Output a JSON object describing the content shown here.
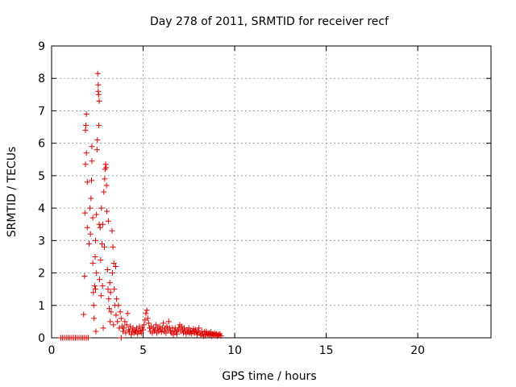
{
  "chart_data": {
    "type": "scatter",
    "title": "Day 278 of 2011, SRMTID for receiver recf",
    "xlabel": "GPS time / hours",
    "ylabel": "SRMTID / TECUs",
    "xlim": [
      0,
      24
    ],
    "ylim": [
      0,
      9
    ],
    "xticks": [
      0,
      5,
      10,
      15,
      20
    ],
    "yticks": [
      0,
      1,
      2,
      3,
      4,
      5,
      6,
      7,
      8,
      9
    ],
    "grid": true,
    "marker": "plus",
    "colors": {
      "series": "#e00000",
      "grid": "#a0a0a0",
      "axis": "#000000"
    },
    "series": [
      {
        "name": "SRMTID",
        "points": [
          [
            0.5,
            0
          ],
          [
            0.6,
            0
          ],
          [
            0.7,
            0
          ],
          [
            0.8,
            0
          ],
          [
            0.9,
            0
          ],
          [
            1.0,
            0
          ],
          [
            1.1,
            0
          ],
          [
            1.2,
            0
          ],
          [
            1.3,
            0
          ],
          [
            1.4,
            0
          ],
          [
            1.5,
            0
          ],
          [
            1.6,
            0
          ],
          [
            1.7,
            0
          ],
          [
            1.8,
            0
          ],
          [
            1.9,
            0
          ],
          [
            2.0,
            0
          ],
          [
            3.8,
            0
          ],
          [
            1.75,
            0.72
          ],
          [
            1.8,
            1.9
          ],
          [
            1.82,
            3.85
          ],
          [
            1.85,
            5.35
          ],
          [
            1.85,
            6.4
          ],
          [
            1.87,
            6.55
          ],
          [
            1.9,
            6.9
          ],
          [
            1.9,
            5.7
          ],
          [
            1.95,
            4.8
          ],
          [
            1.95,
            3.4
          ],
          [
            2.05,
            2.9
          ],
          [
            2.1,
            4.0
          ],
          [
            2.12,
            3.2
          ],
          [
            2.15,
            4.3
          ],
          [
            2.18,
            4.85
          ],
          [
            2.2,
            5.45
          ],
          [
            2.2,
            5.9
          ],
          [
            2.25,
            3.7
          ],
          [
            2.25,
            2.3
          ],
          [
            2.28,
            1.4
          ],
          [
            2.3,
            1.0
          ],
          [
            2.32,
            0.6
          ],
          [
            2.35,
            1.6
          ],
          [
            2.38,
            2.5
          ],
          [
            2.4,
            3.0
          ],
          [
            2.4,
            1.5
          ],
          [
            2.42,
            0.2
          ],
          [
            2.45,
            3.8
          ],
          [
            2.45,
            2.0
          ],
          [
            2.48,
            5.8
          ],
          [
            2.5,
            6.1
          ],
          [
            2.52,
            8.15
          ],
          [
            2.55,
            7.8
          ],
          [
            2.55,
            7.6
          ],
          [
            2.57,
            7.5
          ],
          [
            2.6,
            7.3
          ],
          [
            2.58,
            6.55
          ],
          [
            2.6,
            3.5
          ],
          [
            2.62,
            1.8
          ],
          [
            2.65,
            3.4
          ],
          [
            2.68,
            2.4
          ],
          [
            2.7,
            1.3
          ],
          [
            2.72,
            4.0
          ],
          [
            2.75,
            2.9
          ],
          [
            2.78,
            1.6
          ],
          [
            2.8,
            3.5
          ],
          [
            2.82,
            0.3
          ],
          [
            2.85,
            4.5
          ],
          [
            2.88,
            2.8
          ],
          [
            2.9,
            4.9
          ],
          [
            2.92,
            5.2
          ],
          [
            2.95,
            5.35
          ],
          [
            2.98,
            5.25
          ],
          [
            3.0,
            4.7
          ],
          [
            3.02,
            3.9
          ],
          [
            3.05,
            2.1
          ],
          [
            3.08,
            1.5
          ],
          [
            3.1,
            3.6
          ],
          [
            3.12,
            1.2
          ],
          [
            3.15,
            0.9
          ],
          [
            3.18,
            1.7
          ],
          [
            3.2,
            0.5
          ],
          [
            3.22,
            1.4
          ],
          [
            3.25,
            0.8
          ],
          [
            3.3,
            3.3
          ],
          [
            3.32,
            2.0
          ],
          [
            3.35,
            2.8
          ],
          [
            3.38,
            0.4
          ],
          [
            3.4,
            2.3
          ],
          [
            3.42,
            1.5
          ],
          [
            3.45,
            1.0
          ],
          [
            3.5,
            2.2
          ],
          [
            3.52,
            0.7
          ],
          [
            3.55,
            1.2
          ],
          [
            3.6,
            0.5
          ],
          [
            3.65,
            1.0
          ],
          [
            3.7,
            0.3
          ],
          [
            3.75,
            0.8
          ],
          [
            3.8,
            0.6
          ],
          [
            3.85,
            0.35
          ],
          [
            3.9,
            0.2
          ],
          [
            3.95,
            0.3
          ],
          [
            4.0,
            0.5
          ],
          [
            4.05,
            0.15
          ],
          [
            4.1,
            0.4
          ],
          [
            4.15,
            0.75
          ],
          [
            4.2,
            0.25
          ],
          [
            4.25,
            0.2
          ],
          [
            4.3,
            0.35
          ],
          [
            4.35,
            0.1
          ],
          [
            4.4,
            0.2
          ],
          [
            4.45,
            0.3
          ],
          [
            4.5,
            0.15
          ],
          [
            4.55,
            0.25
          ],
          [
            4.6,
            0.18
          ],
          [
            4.65,
            0.3
          ],
          [
            4.7,
            0.12
          ],
          [
            4.75,
            0.22
          ],
          [
            4.8,
            0.35
          ],
          [
            4.85,
            0.2
          ],
          [
            4.9,
            0.15
          ],
          [
            4.95,
            0.3
          ],
          [
            5.0,
            0.25
          ],
          [
            5.05,
            0.4
          ],
          [
            5.1,
            0.55
          ],
          [
            5.15,
            0.75
          ],
          [
            5.2,
            0.85
          ],
          [
            5.25,
            0.6
          ],
          [
            5.3,
            0.45
          ],
          [
            5.35,
            0.3
          ],
          [
            5.4,
            0.2
          ],
          [
            5.45,
            0.35
          ],
          [
            5.5,
            0.15
          ],
          [
            5.55,
            0.3
          ],
          [
            5.6,
            0.2
          ],
          [
            5.65,
            0.25
          ],
          [
            5.7,
            0.4
          ],
          [
            5.75,
            0.15
          ],
          [
            5.8,
            0.3
          ],
          [
            5.85,
            0.2
          ],
          [
            5.9,
            0.35
          ],
          [
            5.95,
            0.25
          ],
          [
            6.0,
            0.18
          ],
          [
            6.05,
            0.3
          ],
          [
            6.1,
            0.45
          ],
          [
            6.15,
            0.2
          ],
          [
            6.2,
            0.3
          ],
          [
            6.25,
            0.15
          ],
          [
            6.3,
            0.35
          ],
          [
            6.35,
            0.25
          ],
          [
            6.4,
            0.5
          ],
          [
            6.45,
            0.3
          ],
          [
            6.5,
            0.2
          ],
          [
            6.55,
            0.15
          ],
          [
            6.6,
            0.3
          ],
          [
            6.65,
            0.1
          ],
          [
            6.7,
            0.22
          ],
          [
            6.75,
            0.3
          ],
          [
            6.8,
            0.18
          ],
          [
            6.85,
            0.12
          ],
          [
            6.9,
            0.25
          ],
          [
            6.95,
            0.3
          ],
          [
            7.0,
            0.4
          ],
          [
            7.05,
            0.2
          ],
          [
            7.1,
            0.35
          ],
          [
            7.15,
            0.25
          ],
          [
            7.2,
            0.15
          ],
          [
            7.25,
            0.3
          ],
          [
            7.3,
            0.2
          ],
          [
            7.35,
            0.12
          ],
          [
            7.4,
            0.25
          ],
          [
            7.45,
            0.18
          ],
          [
            7.5,
            0.3
          ],
          [
            7.55,
            0.15
          ],
          [
            7.6,
            0.22
          ],
          [
            7.65,
            0.12
          ],
          [
            7.7,
            0.2
          ],
          [
            7.75,
            0.28
          ],
          [
            7.8,
            0.15
          ],
          [
            7.85,
            0.25
          ],
          [
            7.9,
            0.18
          ],
          [
            7.95,
            0.1
          ],
          [
            8.0,
            0.2
          ],
          [
            8.05,
            0.3
          ],
          [
            8.1,
            0.15
          ],
          [
            8.15,
            0.08
          ],
          [
            8.2,
            0.2
          ],
          [
            8.25,
            0.12
          ],
          [
            8.3,
            0.05
          ],
          [
            8.35,
            0.18
          ],
          [
            8.4,
            0.1
          ],
          [
            8.45,
            0.2
          ],
          [
            8.5,
            0.12
          ],
          [
            8.55,
            0.08
          ],
          [
            8.6,
            0.15
          ],
          [
            8.65,
            0.1
          ],
          [
            8.7,
            0.18
          ],
          [
            8.75,
            0.05
          ],
          [
            8.8,
            0.12
          ],
          [
            8.85,
            0.08
          ],
          [
            8.9,
            0.15
          ],
          [
            8.95,
            0.1
          ],
          [
            9.0,
            0.12
          ],
          [
            9.05,
            0.05
          ],
          [
            9.1,
            0.1
          ],
          [
            9.15,
            0.08
          ],
          [
            9.2,
            0.12
          ],
          [
            9.25,
            0.06
          ]
        ]
      }
    ]
  }
}
